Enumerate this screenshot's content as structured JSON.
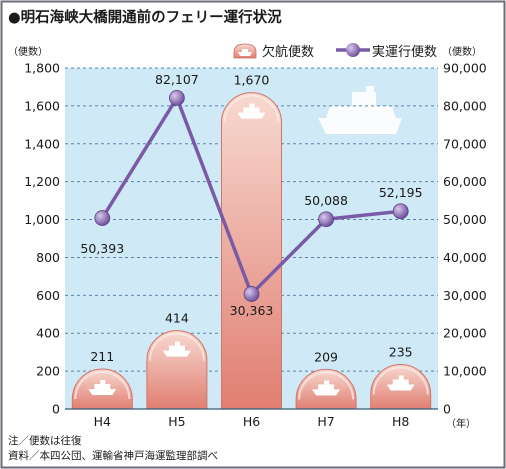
{
  "chart_data": {
    "type": "bar",
    "title": "●明石海峡大橋開通前のフェリー運行状況",
    "categories": [
      "H4",
      "H5",
      "H6",
      "H7",
      "H8"
    ],
    "series": [
      {
        "name": "欠航便数",
        "type": "bar",
        "axis": "left",
        "values": [
          211,
          414,
          1670,
          209,
          235
        ],
        "labels": [
          "211",
          "414",
          "1,670",
          "209",
          "235"
        ]
      },
      {
        "name": "実運行便数",
        "type": "line",
        "axis": "right",
        "values": [
          50393,
          82107,
          30363,
          50088,
          52195
        ],
        "labels": [
          "50,393",
          "82,107",
          "30,363",
          "50,088",
          "52,195"
        ]
      }
    ],
    "left_axis": {
      "unit": "（便数）",
      "ylim": [
        0,
        1800
      ],
      "ticks": [
        "0",
        "200",
        "400",
        "600",
        "800",
        "1,000",
        "1,200",
        "1,400",
        "1,600",
        "1,800"
      ]
    },
    "right_axis": {
      "unit": "（便数）",
      "ylim": [
        0,
        90000
      ],
      "ticks": [
        "0",
        "10,000",
        "20,000",
        "30,000",
        "40,000",
        "50,000",
        "60,000",
        "70,000",
        "80,000",
        "90,000"
      ]
    },
    "x_unit": "（年）",
    "grid": true,
    "legend": "top",
    "notes": [
      "注／便数は往復",
      "資料／本四公団、運輸省神戸海運監理部調べ"
    ],
    "colors": {
      "bar_top": "#f7d9d0",
      "bar_bottom": "#e17e72",
      "line": "#7a5aa6",
      "marker_light": "#d8c8ec",
      "marker_dark": "#6a4a98",
      "plot_bg": "#cfe9f6",
      "grid": "#5b86a8",
      "frame": "#6f6a78"
    }
  }
}
